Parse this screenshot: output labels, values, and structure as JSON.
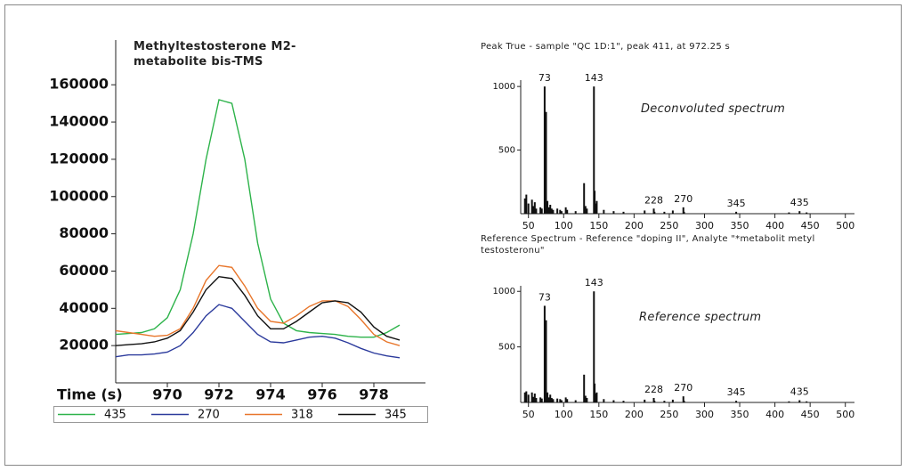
{
  "chart_data": [
    {
      "type": "line",
      "title": "Methyltestosterone M2-metabolite bis-TMS",
      "x_label": "Time (s)",
      "x": [
        968,
        968.5,
        969,
        969.5,
        970,
        970.5,
        971,
        971.5,
        972,
        972.5,
        973,
        973.5,
        974,
        974.5,
        975,
        975.5,
        976,
        976.5,
        977,
        977.5,
        978,
        978.5,
        979
      ],
      "series": [
        {
          "name": "435",
          "color": "#2db34a",
          "values": [
            26000,
            26500,
            27000,
            29000,
            35000,
            50000,
            80000,
            120000,
            152000,
            150000,
            120000,
            75000,
            45000,
            32000,
            28000,
            27000,
            26500,
            26000,
            25000,
            24500,
            24500,
            27000,
            31000
          ]
        },
        {
          "name": "270",
          "color": "#2b3a9c",
          "values": [
            14000,
            15000,
            15000,
            15500,
            16500,
            20000,
            27000,
            36000,
            42000,
            40000,
            33000,
            26000,
            22000,
            21500,
            23000,
            24500,
            25000,
            24000,
            21500,
            18500,
            16000,
            14500,
            13500
          ]
        },
        {
          "name": "318",
          "color": "#e8762b",
          "values": [
            28000,
            27000,
            26000,
            25000,
            25500,
            29000,
            40000,
            55000,
            63000,
            62000,
            52000,
            40000,
            33000,
            32000,
            36000,
            41000,
            44000,
            44000,
            41000,
            34000,
            26000,
            22000,
            20000
          ]
        },
        {
          "name": "345",
          "color": "#111111",
          "values": [
            20000,
            20500,
            21000,
            22000,
            24000,
            28000,
            38000,
            50000,
            57000,
            56000,
            47000,
            36000,
            29000,
            29000,
            33000,
            38000,
            43000,
            44000,
            43000,
            38000,
            30000,
            25000,
            23000
          ]
        }
      ],
      "xlim": [
        968,
        980
      ],
      "xticks": [
        970,
        972,
        974,
        976,
        978
      ],
      "ylim": [
        0,
        184000
      ],
      "yticks": [
        20000,
        40000,
        60000,
        80000,
        100000,
        120000,
        140000,
        160000
      ]
    },
    {
      "type": "stem",
      "title": "Peak True - sample \"QC 1D:1\", peak 411, at 972.25 s",
      "annotation": "Deconvoluted spectrum",
      "x": [
        45,
        47,
        50,
        55,
        57,
        59,
        61,
        67,
        69,
        73,
        74,
        75,
        77,
        79,
        81,
        83,
        85,
        91,
        95,
        97,
        103,
        105,
        117,
        129,
        131,
        133,
        143,
        144,
        145,
        147,
        157,
        171,
        185,
        215,
        228,
        229,
        243,
        255,
        270,
        271,
        345,
        420,
        435,
        445
      ],
      "values": [
        120,
        150,
        80,
        110,
        60,
        90,
        40,
        50,
        40,
        1000,
        120,
        800,
        100,
        50,
        70,
        40,
        30,
        40,
        30,
        20,
        50,
        30,
        20,
        240,
        60,
        40,
        1000,
        180,
        80,
        100,
        30,
        20,
        15,
        25,
        40,
        15,
        15,
        25,
        50,
        15,
        15,
        10,
        20,
        10
      ],
      "peak_labels": [
        73,
        143,
        228,
        270,
        345,
        435
      ],
      "color": "#111111",
      "xlim": [
        39,
        513
      ],
      "xticks": [
        50,
        100,
        150,
        200,
        250,
        300,
        350,
        400,
        450,
        500
      ],
      "ylim": [
        0,
        1050
      ],
      "yticks": [
        500,
        1000
      ]
    },
    {
      "type": "stem",
      "title": "Reference Spectrum - Reference \"doping II\", Analyte \"*metabolit metyl testosteronu\"",
      "annotation": "Reference spectrum",
      "x": [
        45,
        47,
        50,
        55,
        57,
        59,
        61,
        67,
        69,
        73,
        74,
        75,
        77,
        79,
        81,
        83,
        85,
        91,
        95,
        97,
        103,
        105,
        117,
        129,
        131,
        133,
        143,
        144,
        145,
        147,
        157,
        171,
        185,
        215,
        228,
        229,
        243,
        255,
        270,
        271,
        345,
        420,
        435,
        445
      ],
      "values": [
        90,
        100,
        70,
        90,
        50,
        80,
        40,
        45,
        35,
        870,
        110,
        740,
        90,
        45,
        70,
        40,
        30,
        35,
        30,
        20,
        45,
        30,
        20,
        250,
        60,
        40,
        1000,
        170,
        80,
        90,
        30,
        20,
        15,
        25,
        40,
        15,
        15,
        25,
        55,
        15,
        15,
        10,
        20,
        10
      ],
      "peak_labels": [
        73,
        143,
        228,
        270,
        345,
        435
      ],
      "color": "#111111",
      "xlim": [
        39,
        513
      ],
      "xticks": [
        50,
        100,
        150,
        200,
        250,
        300,
        350,
        400,
        450,
        500
      ],
      "ylim": [
        0,
        1050
      ],
      "yticks": [
        500,
        1000
      ]
    }
  ]
}
